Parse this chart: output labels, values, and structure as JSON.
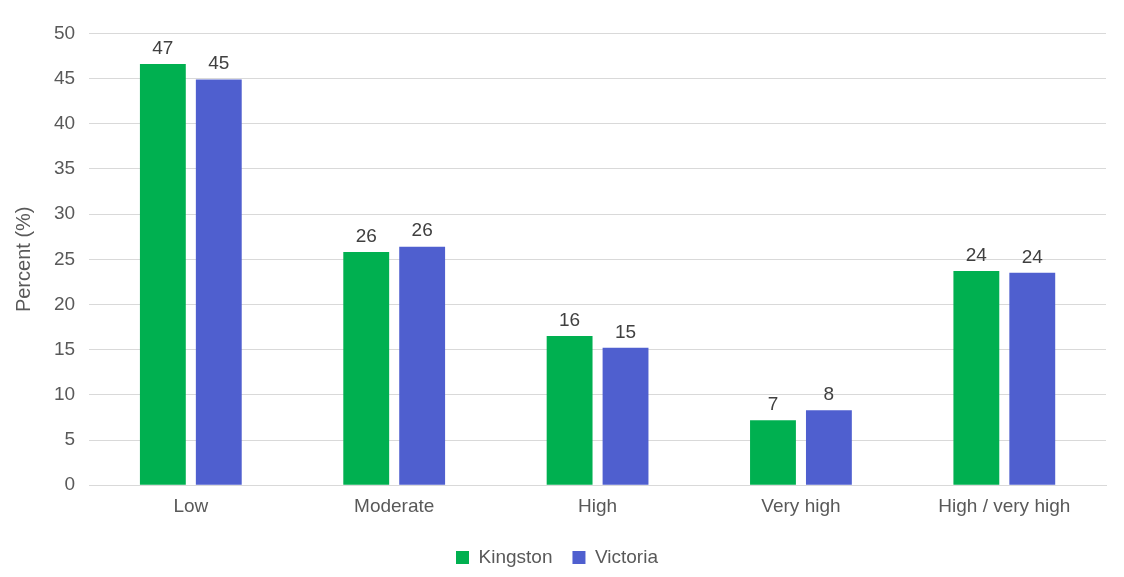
{
  "chart_data": {
    "type": "bar",
    "ylabel": "Percent (%)",
    "categories": [
      "Low",
      "Moderate",
      "High",
      "Very high",
      "High / very high"
    ],
    "series": [
      {
        "name": "Kingston",
        "color": "#00b050",
        "values": [
          46.6,
          25.8,
          16.5,
          7.2,
          23.7
        ],
        "value_labels": [
          "47",
          "26",
          "16",
          "7",
          "24"
        ]
      },
      {
        "name": "Victoria",
        "color": "#4f5fcf",
        "values": [
          44.9,
          26.4,
          15.2,
          8.3,
          23.5
        ],
        "value_labels": [
          "45",
          "26",
          "15",
          "8",
          "24"
        ]
      }
    ],
    "ylim": [
      0,
      50
    ],
    "yticks": [
      0,
      5,
      10,
      15,
      20,
      25,
      30,
      35,
      40,
      45,
      50
    ],
    "grid": "y",
    "legend": "bottom"
  }
}
